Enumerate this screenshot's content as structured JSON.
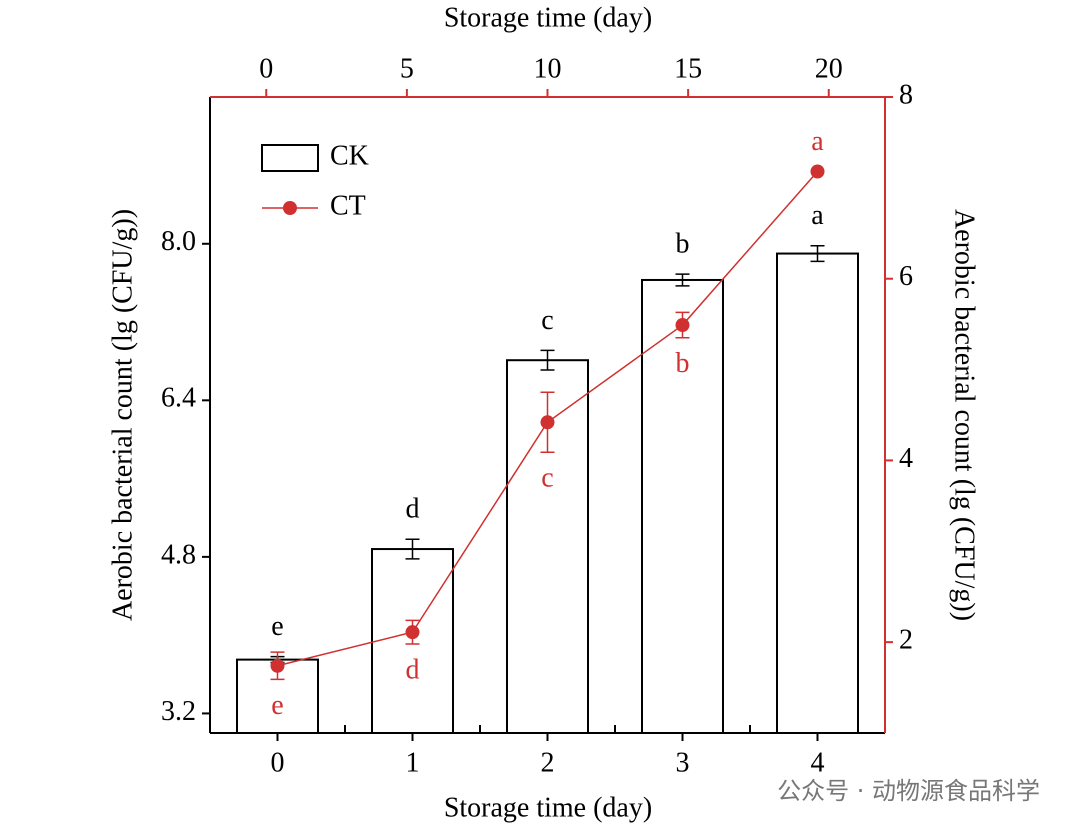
{
  "chart_data": {
    "type": "bar",
    "xlabel": "Storage time (day)",
    "x2label": "Storage time (day)",
    "ylabel": "Aerobic bacterial count (lg (CFU/g))",
    "y2label": "Aerobic bacterial count (lg (CFU/g))",
    "categories": [
      "0",
      "1",
      "2",
      "3",
      "4"
    ],
    "x2lim": [
      -2,
      22
    ],
    "x2ticks": [
      0,
      5,
      10,
      15,
      20
    ],
    "ylim": [
      3.0,
      9.5
    ],
    "yticks": [
      3.2,
      4.8,
      6.4,
      {
        "value": 8,
        "label": "8.0"
      }
    ],
    "y2lim": [
      1,
      8
    ],
    "y2ticks": [
      2,
      4,
      6,
      8
    ],
    "legend": "upper left",
    "series": [
      {
        "name": "CK",
        "type": "bar",
        "color": "#000000",
        "values": [
          3.75,
          4.88,
          6.81,
          7.63,
          7.9
        ],
        "errors": [
          0.03,
          0.1,
          0.1,
          0.06,
          0.08
        ],
        "sig_labels": [
          "e",
          "d",
          "c",
          "b",
          "a"
        ]
      },
      {
        "name": "CT",
        "type": "line",
        "axis": "y2",
        "color": "#d03030",
        "values": [
          1.74,
          2.11,
          4.42,
          5.49,
          7.18
        ],
        "errors": [
          0.15,
          0.13,
          0.33,
          0.14,
          0
        ],
        "sig_labels": [
          "e",
          "d",
          "c",
          "b",
          "a"
        ]
      }
    ]
  },
  "watermark": "公众号 · 动物源食品科学"
}
